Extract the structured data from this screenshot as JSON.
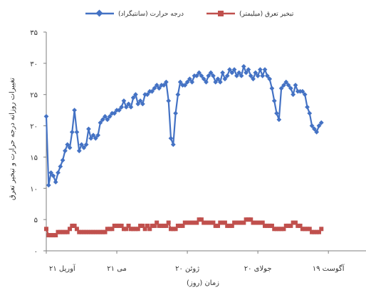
{
  "chart_data": {
    "type": "line",
    "title": "",
    "xlabel": "زمان (روز)",
    "ylabel": "تغییرات روزانه درجه حرارت و تبخیر تعرق",
    "ylim": [
      0,
      35
    ],
    "y_ticks": [
      "۰",
      "۵",
      "۱۰",
      "۱۵",
      "۲۰",
      "۲۵",
      "۳۰",
      "۳۵"
    ],
    "x_tick_labels": [
      "۲۱ آوریل",
      "۲۱ می",
      "۲۰ ژوئن",
      "۲۰ جولای",
      "۱۹ آگوست"
    ],
    "x_tick_days": [
      0,
      30,
      60,
      90,
      120
    ],
    "xlim": [
      0,
      136
    ],
    "grid": false,
    "legend_position": "top",
    "series": [
      {
        "name": "درجه حرارت (سانتیگراد)",
        "color": "#4472C4",
        "marker": "diamond",
        "values": [
          21.5,
          10.5,
          12.5,
          12,
          11,
          12.5,
          13.5,
          14.5,
          16,
          17,
          16.5,
          19,
          22.5,
          19,
          16,
          17,
          16.5,
          17,
          19.5,
          18,
          18.5,
          18,
          18.5,
          20.5,
          21,
          21.5,
          21,
          21.5,
          22,
          22,
          22.5,
          22.5,
          23,
          24,
          23,
          23.5,
          23,
          24.5,
          25,
          23.5,
          24,
          23.5,
          25,
          25,
          25.5,
          25.5,
          26,
          26.5,
          26,
          26.5,
          26.5,
          27,
          24,
          18,
          17,
          22,
          25,
          27,
          26.5,
          26.5,
          27,
          27.5,
          27,
          28,
          28,
          28.5,
          28,
          27.5,
          27,
          28,
          28.5,
          28,
          27,
          27.5,
          27,
          28.5,
          27.5,
          28,
          29,
          28.5,
          29,
          28,
          28.5,
          28,
          29.5,
          28.5,
          29,
          28,
          27.5,
          28.5,
          28,
          29,
          28,
          29,
          28,
          27.5,
          26,
          24,
          22,
          21,
          26,
          26.5,
          27,
          26.5,
          26,
          25,
          26.5,
          25.5,
          25.5,
          25.5,
          25,
          23,
          22,
          20,
          19.5,
          19,
          20,
          20.5
        ]
      },
      {
        "name": "تبخیر تعرق (میلیمتر)",
        "color": "#C0504D",
        "marker": "square",
        "values": [
          3.5,
          2.5,
          2.5,
          2.5,
          2.5,
          3,
          3,
          3,
          3,
          3,
          3.5,
          4,
          4,
          3.5,
          3,
          3,
          3,
          3,
          3,
          3,
          3,
          3,
          3,
          3,
          3,
          3,
          3.5,
          3.5,
          3.5,
          4,
          4,
          4,
          4,
          3.5,
          3.5,
          4,
          3.5,
          3.5,
          3.5,
          3.5,
          4,
          4,
          3.5,
          4,
          3.5,
          4,
          4,
          4.5,
          4,
          4,
          4,
          4,
          4.5,
          3.5,
          3.5,
          3.5,
          4,
          4,
          4,
          4.5,
          4.5,
          4.5,
          4.5,
          4.5,
          4.5,
          5,
          5,
          4.5,
          4.5,
          4.5,
          4.5,
          4.5,
          4,
          4,
          4.5,
          4.5,
          4.5,
          4,
          4,
          4,
          4.5,
          4.5,
          4.5,
          4.5,
          4.5,
          5,
          5,
          5,
          4.5,
          4.5,
          4.5,
          4.5,
          4.5,
          4,
          4,
          4,
          4,
          3.5,
          3.5,
          3.5,
          3.5,
          3.5,
          4,
          4,
          4,
          4.5,
          4.5,
          4,
          4,
          3.5,
          3.5,
          3.5,
          3.5,
          3,
          3,
          3,
          3,
          3.5
        ]
      }
    ]
  }
}
